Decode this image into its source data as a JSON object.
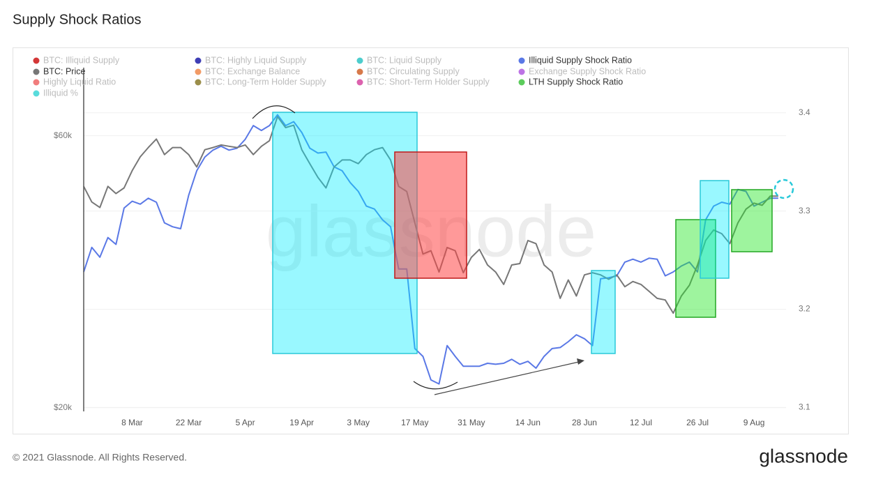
{
  "chart_data": {
    "type": "line",
    "title": "Supply Shock Ratios",
    "watermark": "glassnode",
    "footer": "© 2021 Glassnode. All Rights Reserved.",
    "logo": "glassnode",
    "categories": [
      "24 Feb",
      "26 Feb",
      "28 Feb",
      "2 Mar",
      "4 Mar",
      "6 Mar",
      "8 Mar",
      "10 Mar",
      "12 Mar",
      "14 Mar",
      "16 Mar",
      "18 Mar",
      "20 Mar",
      "22 Mar",
      "24 Mar",
      "26 Mar",
      "28 Mar",
      "30 Mar",
      "1 Apr",
      "3 Apr",
      "5 Apr",
      "7 Apr",
      "9 Apr",
      "11 Apr",
      "13 Apr",
      "15 Apr",
      "17 Apr",
      "19 Apr",
      "21 Apr",
      "23 Apr",
      "25 Apr",
      "27 Apr",
      "29 Apr",
      "1 May",
      "3 May",
      "5 May",
      "7 May",
      "9 May",
      "11 May",
      "13 May",
      "15 May",
      "17 May",
      "19 May",
      "21 May",
      "23 May",
      "25 May",
      "27 May",
      "29 May",
      "31 May",
      "2 Jun",
      "4 Jun",
      "6 Jun",
      "8 Jun",
      "10 Jun",
      "12 Jun",
      "14 Jun",
      "16 Jun",
      "18 Jun",
      "20 Jun",
      "22 Jun",
      "24 Jun",
      "26 Jun",
      "28 Jun",
      "30 Jun",
      "2 Jul",
      "4 Jul",
      "6 Jul",
      "8 Jul",
      "10 Jul",
      "12 Jul",
      "14 Jul",
      "16 Jul",
      "18 Jul",
      "20 Jul",
      "22 Jul",
      "24 Jul",
      "26 Jul",
      "28 Jul",
      "30 Jul",
      "1 Aug",
      "3 Aug",
      "5 Aug",
      "7 Aug",
      "9 Aug",
      "11 Aug",
      "13 Aug",
      "15 Aug"
    ],
    "xticks": [
      "8 Mar",
      "22 Mar",
      "5 Apr",
      "19 Apr",
      "3 May",
      "17 May",
      "31 May",
      "14 Jun",
      "28 Jun",
      "12 Jul",
      "26 Jul",
      "9 Aug"
    ],
    "ylim": [
      19700,
      79000
    ],
    "yscale": "log",
    "yticks": [
      {
        "value": 20000,
        "label": "$20k"
      },
      {
        "value": 60000,
        "label": "$60k"
      }
    ],
    "y2lim": [
      3.096,
      3.446
    ],
    "y2ticks": [
      3.1,
      3.2,
      3.3,
      3.4
    ],
    "grid": true,
    "legend": "top-left",
    "series": [
      {
        "name": "BTC: Illiquid Supply",
        "color": "#cc1414",
        "active": false
      },
      {
        "name": "BTC: Highly Liquid Supply",
        "color": "#1c1ca8",
        "active": false
      },
      {
        "name": "BTC: Liquid Supply",
        "color": "#2ec4c4",
        "active": false
      },
      {
        "name": "Illiquid Supply Shock Ratio",
        "color": "#5a78e6",
        "active": true,
        "axis": "y2",
        "values": [
          3.238,
          3.263,
          3.253,
          3.273,
          3.266,
          3.303,
          3.31,
          3.307,
          3.313,
          3.309,
          3.288,
          3.284,
          3.282,
          3.316,
          3.341,
          3.355,
          3.362,
          3.366,
          3.362,
          3.364,
          3.373,
          3.387,
          3.382,
          3.387,
          3.398,
          3.387,
          3.391,
          3.38,
          3.364,
          3.359,
          3.36,
          3.345,
          3.341,
          3.329,
          3.32,
          3.305,
          3.302,
          3.291,
          3.284,
          3.241,
          3.241,
          3.16,
          3.152,
          3.128,
          3.124,
          3.163,
          3.152,
          3.142,
          3.142,
          3.142,
          3.145,
          3.144,
          3.145,
          3.149,
          3.144,
          3.147,
          3.14,
          3.152,
          3.16,
          3.161,
          3.167,
          3.174,
          3.17,
          3.163,
          3.231,
          3.232,
          3.234,
          3.248,
          3.251,
          3.248,
          3.252,
          3.251,
          3.234,
          3.238,
          3.244,
          3.248,
          3.238,
          3.291,
          3.305,
          3.309,
          3.307,
          3.322,
          3.32,
          3.305,
          3.309,
          3.313,
          3.313
        ]
      },
      {
        "name": "BTC: Price",
        "color": "#777777",
        "active": true,
        "axis": "y",
        "values": [
          48900,
          45900,
          44900,
          48900,
          47500,
          48600,
          52100,
          55100,
          57200,
          59200,
          55600,
          57200,
          57200,
          55600,
          52900,
          56700,
          57200,
          57800,
          57500,
          57200,
          57800,
          55600,
          57500,
          58800,
          64800,
          62000,
          62600,
          56700,
          53600,
          50700,
          48600,
          52900,
          54400,
          54400,
          53600,
          55600,
          56700,
          57200,
          54400,
          48900,
          47900,
          42200,
          37200,
          37700,
          34600,
          38200,
          37700,
          34500,
          36700,
          37900,
          35600,
          34600,
          32900,
          35600,
          35800,
          39300,
          38800,
          35600,
          34600,
          31100,
          33500,
          31400,
          34200,
          34500,
          34200,
          33600,
          34200,
          32600,
          33300,
          32900,
          32000,
          31100,
          30900,
          29300,
          31400,
          32800,
          35600,
          39300,
          41000,
          40400,
          38800,
          42200,
          44600,
          45700,
          45300,
          47000,
          47000
        ]
      },
      {
        "name": "BTC: Exchange Balance",
        "color": "#f08a4b",
        "active": false
      },
      {
        "name": "BTC: Circulating Supply",
        "color": "#d0622a",
        "active": false
      },
      {
        "name": "Exchange Supply Shock Ratio",
        "color": "#b25ae0",
        "active": false
      },
      {
        "name": "Highly Liquid Ratio",
        "color": "#ee6666",
        "active": false
      },
      {
        "name": "BTC: Long-Term Holder Supply",
        "color": "#8a7a2a",
        "active": false
      },
      {
        "name": "BTC: Short-Term Holder Supply",
        "color": "#d646a0",
        "active": false
      },
      {
        "name": "LTH Supply Shock Ratio",
        "color": "#5ccc5c",
        "active": true
      },
      {
        "name": "Illiquid %",
        "color": "#3cd6d6",
        "active": false
      }
    ]
  }
}
